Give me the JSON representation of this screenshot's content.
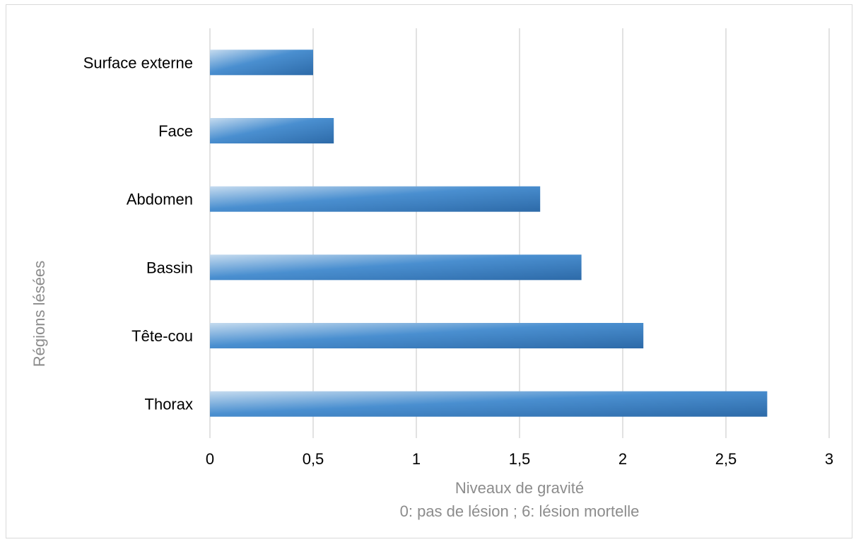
{
  "chart_data": {
    "type": "bar",
    "orientation": "horizontal",
    "categories": [
      "Surface externe",
      "Face",
      "Abdomen",
      "Bassin",
      "Tête-cou",
      "Thorax"
    ],
    "values": [
      0.5,
      0.6,
      1.6,
      1.8,
      2.1,
      2.7
    ],
    "xlabel": "Niveaux de gravité",
    "xlabel_sub": "0: pas de lésion ; 6: lésion mortelle",
    "ylabel": "Régions lésées",
    "xlim": [
      0,
      3
    ],
    "xticks": [
      "0",
      "0,5",
      "1",
      "1,5",
      "2",
      "2,5",
      "3"
    ],
    "xtick_values": [
      0,
      0.5,
      1,
      1.5,
      2,
      2.5,
      3
    ],
    "grid": "vertical",
    "legend": "none",
    "colors": {
      "bar_light": "#c5dbef",
      "bar_mid": "#4a8fd0",
      "bar_dark": "#2d6aa8",
      "grid": "#d9d9d9",
      "axis_title": "#8c8c8c"
    }
  }
}
